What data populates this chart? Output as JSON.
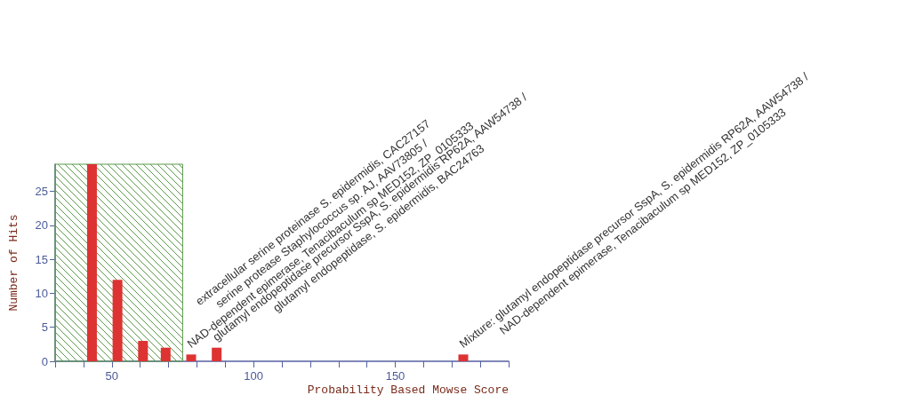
{
  "chart_data": {
    "type": "bar",
    "xlabel": "Probability Based Mowse Score",
    "ylabel": "Number of Hits",
    "x": [
      43,
      52,
      61,
      69,
      78,
      87,
      174
    ],
    "values": [
      29,
      12,
      3,
      2,
      1,
      2,
      1
    ],
    "color": "#dd3333",
    "xlim": [
      30,
      190
    ],
    "xticks": [
      {
        "value": 30,
        "label": null
      },
      {
        "value": 40,
        "label": null
      },
      50,
      {
        "value": 60,
        "label": null
      },
      {
        "value": 70,
        "label": null
      },
      {
        "value": 80,
        "label": null
      },
      {
        "value": 90,
        "label": null
      },
      100,
      {
        "value": 110,
        "label": null
      },
      {
        "value": 120,
        "label": null
      },
      {
        "value": 130,
        "label": null
      },
      {
        "value": 140,
        "label": null
      },
      150,
      {
        "value": 160,
        "label": null
      },
      {
        "value": 170,
        "label": null
      },
      {
        "value": 180,
        "label": null
      },
      {
        "value": 190,
        "label": null
      }
    ],
    "ylim": [
      0,
      29
    ],
    "yticks": [
      0,
      5,
      10,
      15,
      20,
      25
    ],
    "grid": false,
    "bands": [
      {
        "axis": "x",
        "from": 30,
        "to": 75,
        "color": "#5a9a4a"
      }
    ],
    "annotations": [
      {
        "text": "extracellular serine proteinase S. epidermidis, CAC27157\nserine protease Staphylococcus sp. AJ, AAV73805 /\nNAD-dependent epimerase, Tenacibaculum sp MED152, ZP_0105333",
        "x": 78,
        "y": 1
      },
      {
        "text": "glutamyl endopeptidase precursor SspA, S. epidermidis RP62A, AAW54738 /\nglutamyl endopeptidase, S. epidermidis, BAC24763",
        "x": 87,
        "y": 2
      },
      {
        "text": "Mixture: glutamyl endopeptidase precursor SspA, S. epidermidis RP62A, AAW54738 /\nNAD-dependent epimerase, Tenacibaculum sp MED152, ZP_0105333",
        "x": 174,
        "y": 1
      }
    ]
  }
}
